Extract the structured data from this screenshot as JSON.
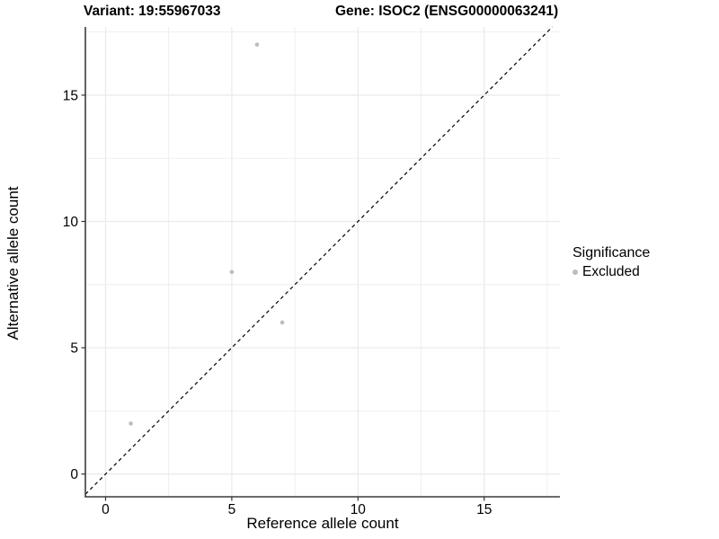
{
  "titles": {
    "variant": "Variant: 19:55967033",
    "gene": "Gene: ISOC2 (ENSG00000063241)"
  },
  "axes": {
    "x_label": "Reference allele count",
    "y_label": "Alternative allele count"
  },
  "legend": {
    "title": "Significance",
    "items": [
      {
        "label": "Excluded",
        "color": "#bdbdbd"
      }
    ]
  },
  "colors": {
    "point": "#bdbdbd",
    "grid": "#ebebeb",
    "axis_line": "#3c3c3c",
    "tick": "#333333",
    "text": "#000000",
    "ref_line": "#000000"
  },
  "chart_data": {
    "type": "scatter",
    "title": "Variant: 19:55967033 | Gene: ISOC2 (ENSG00000063241)",
    "xlabel": "Reference allele count",
    "ylabel": "Alternative allele count",
    "xlim": [
      -0.8,
      18.0
    ],
    "ylim": [
      -0.9,
      17.7
    ],
    "x_ticks": [
      0,
      5,
      10,
      15
    ],
    "y_ticks": [
      0,
      5,
      10,
      15
    ],
    "x_minor_ticks": [
      2.5,
      7.5,
      12.5,
      17.5
    ],
    "y_minor_ticks": [
      2.5,
      7.5,
      12.5,
      17.5
    ],
    "grid": true,
    "legend_position": "right",
    "reference_line": {
      "type": "identity",
      "equation": "y = x",
      "style": "dashed"
    },
    "series": [
      {
        "name": "Excluded",
        "color": "#bdbdbd",
        "points": [
          [
            1,
            2
          ],
          [
            5,
            8
          ],
          [
            6,
            17
          ],
          [
            7,
            6
          ]
        ]
      }
    ]
  }
}
